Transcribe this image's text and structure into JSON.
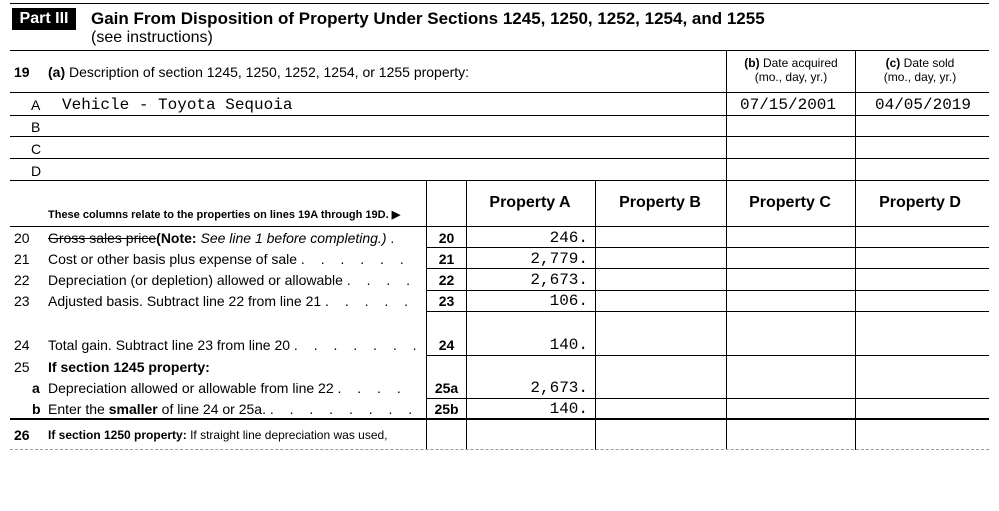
{
  "part": {
    "badge": "Part III",
    "title": "Gain From Disposition of Property Under Sections 1245, 1250, 1252, 1254, and 1255",
    "subtitle": "(see instructions)"
  },
  "line19": {
    "num": "19",
    "label_a": "(a)",
    "desc": "Description of section 1245, 1250, 1252, 1254, or 1255 property:",
    "col_b_letter": "(b)",
    "col_b_label": "Date acquired",
    "col_b_sub": "(mo., day, yr.)",
    "col_c_letter": "(c)",
    "col_c_label": "Date sold",
    "col_c_sub": "(mo., day, yr.)",
    "rows": [
      {
        "letter": "A",
        "description": "Vehicle - Toyota Sequoia",
        "acquired": "07/15/2001",
        "sold": "04/05/2019"
      },
      {
        "letter": "B",
        "description": "",
        "acquired": "",
        "sold": ""
      },
      {
        "letter": "C",
        "description": "",
        "acquired": "",
        "sold": ""
      },
      {
        "letter": "D",
        "description": "",
        "acquired": "",
        "sold": ""
      }
    ]
  },
  "columns": {
    "note": "These columns relate to the properties on lines 19A through 19D.",
    "arrow": "▶",
    "headers": [
      "Property A",
      "Property B",
      "Property C",
      "Property D"
    ]
  },
  "lines": [
    {
      "num": "20",
      "sub": "",
      "label": "Gross sales price",
      "extra_bold": "(Note:",
      "extra_italic": "See line 1 before completing.)",
      "dots": ". ",
      "box": "20",
      "values": [
        "246.",
        "",
        "",
        ""
      ]
    },
    {
      "num": "21",
      "sub": "",
      "label": "Cost or other basis plus expense of sale",
      "dots": ". . . . . .",
      "box": "21",
      "values": [
        "2,779.",
        "",
        "",
        ""
      ]
    },
    {
      "num": "22",
      "sub": "",
      "label": "Depreciation (or depletion) allowed or allowable",
      "dots": ". . . .",
      "box": "22",
      "values": [
        "2,673.",
        "",
        "",
        ""
      ]
    },
    {
      "num": "23",
      "sub": "",
      "label": "Adjusted basis. Subtract line 22 from line 21",
      "dots": ". . . . .",
      "box": "23",
      "values": [
        "106.",
        "",
        "",
        ""
      ]
    },
    {
      "num": "24",
      "sub": "",
      "label": "Total gain. Subtract line 23 from line 20",
      "dots": ". . . . . . .",
      "box": "24",
      "values": [
        "140.",
        "",
        "",
        ""
      ]
    },
    {
      "num": "25",
      "sub": "",
      "label": "If section 1245 property:",
      "dots": "",
      "box": "",
      "values": [
        "",
        "",
        "",
        ""
      ]
    },
    {
      "num": "",
      "sub": "a",
      "label": "Depreciation allowed or allowable from line 22",
      "dots": ". . . .",
      "box": "25a",
      "values": [
        "2,673.",
        "",
        "",
        ""
      ]
    },
    {
      "num": "",
      "sub": "b",
      "label_pre": "Enter the",
      "label_bold": "smaller",
      "label_post": "of line 24 or 25a.",
      "dots": ". . . . . . . .",
      "box": "25b",
      "values": [
        "140.",
        "",
        "",
        ""
      ]
    },
    {
      "num": "26",
      "sub": "",
      "label_bold": "If section 1250 property:",
      "label_post": "If straight line depreciation was used,",
      "dots": "",
      "box": "",
      "values": [
        "",
        "",
        "",
        ""
      ]
    }
  ]
}
